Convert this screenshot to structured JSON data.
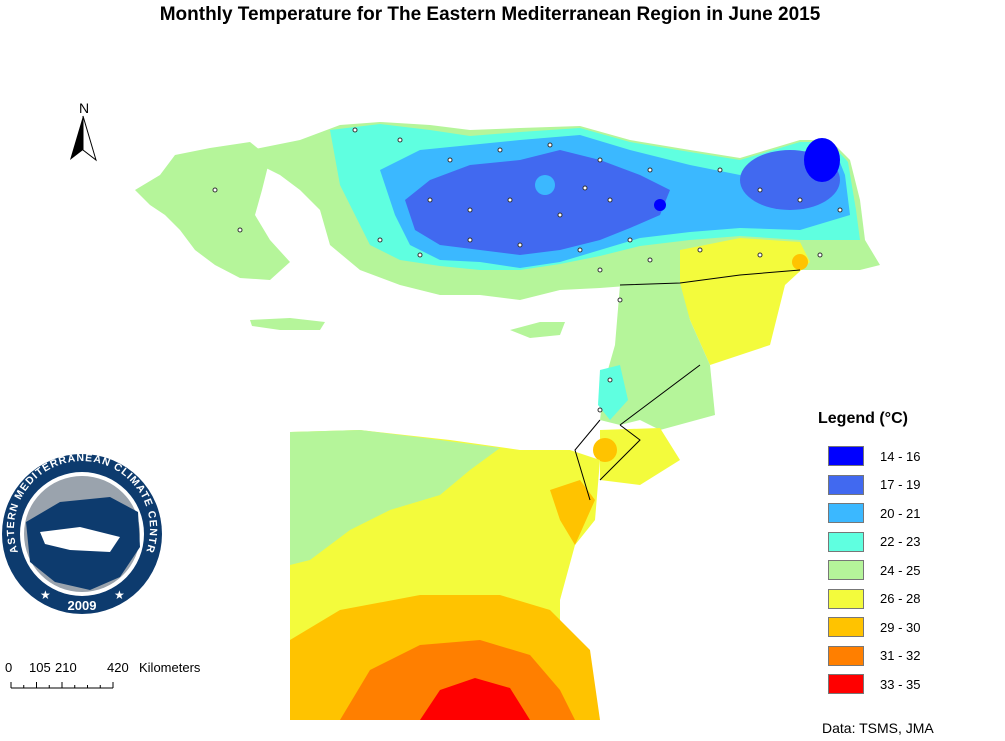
{
  "title": "Monthly Temperature  for The Eastern Mediterranean Region in June 2015",
  "north_label": "N",
  "legend": {
    "title": "Legend (°C)",
    "items": [
      {
        "label": "14 - 16",
        "color": "#0000ff"
      },
      {
        "label": "17 - 19",
        "color": "#4169f0"
      },
      {
        "label": "20 - 21",
        "color": "#3bb8ff"
      },
      {
        "label": "22 - 23",
        "color": "#5fffe0"
      },
      {
        "label": "24 - 25",
        "color": "#b5f59a"
      },
      {
        "label": "26 - 28",
        "color": "#f3fb3c"
      },
      {
        "label": "29 - 30",
        "color": "#ffc300"
      },
      {
        "label": "31 - 32",
        "color": "#ff7f00"
      },
      {
        "label": "33 - 35",
        "color": "#ff0000"
      }
    ]
  },
  "scale_bar": {
    "ticks": [
      "0",
      "105",
      "210",
      "420"
    ],
    "unit": "Kilometers"
  },
  "data_source": "Data: TSMS, JMA",
  "logo": {
    "top_text": "EASTERN MEDITERRANEAN CLIMATE CENTRE",
    "year": "2009",
    "icon": "emcc-globe-icon"
  }
}
